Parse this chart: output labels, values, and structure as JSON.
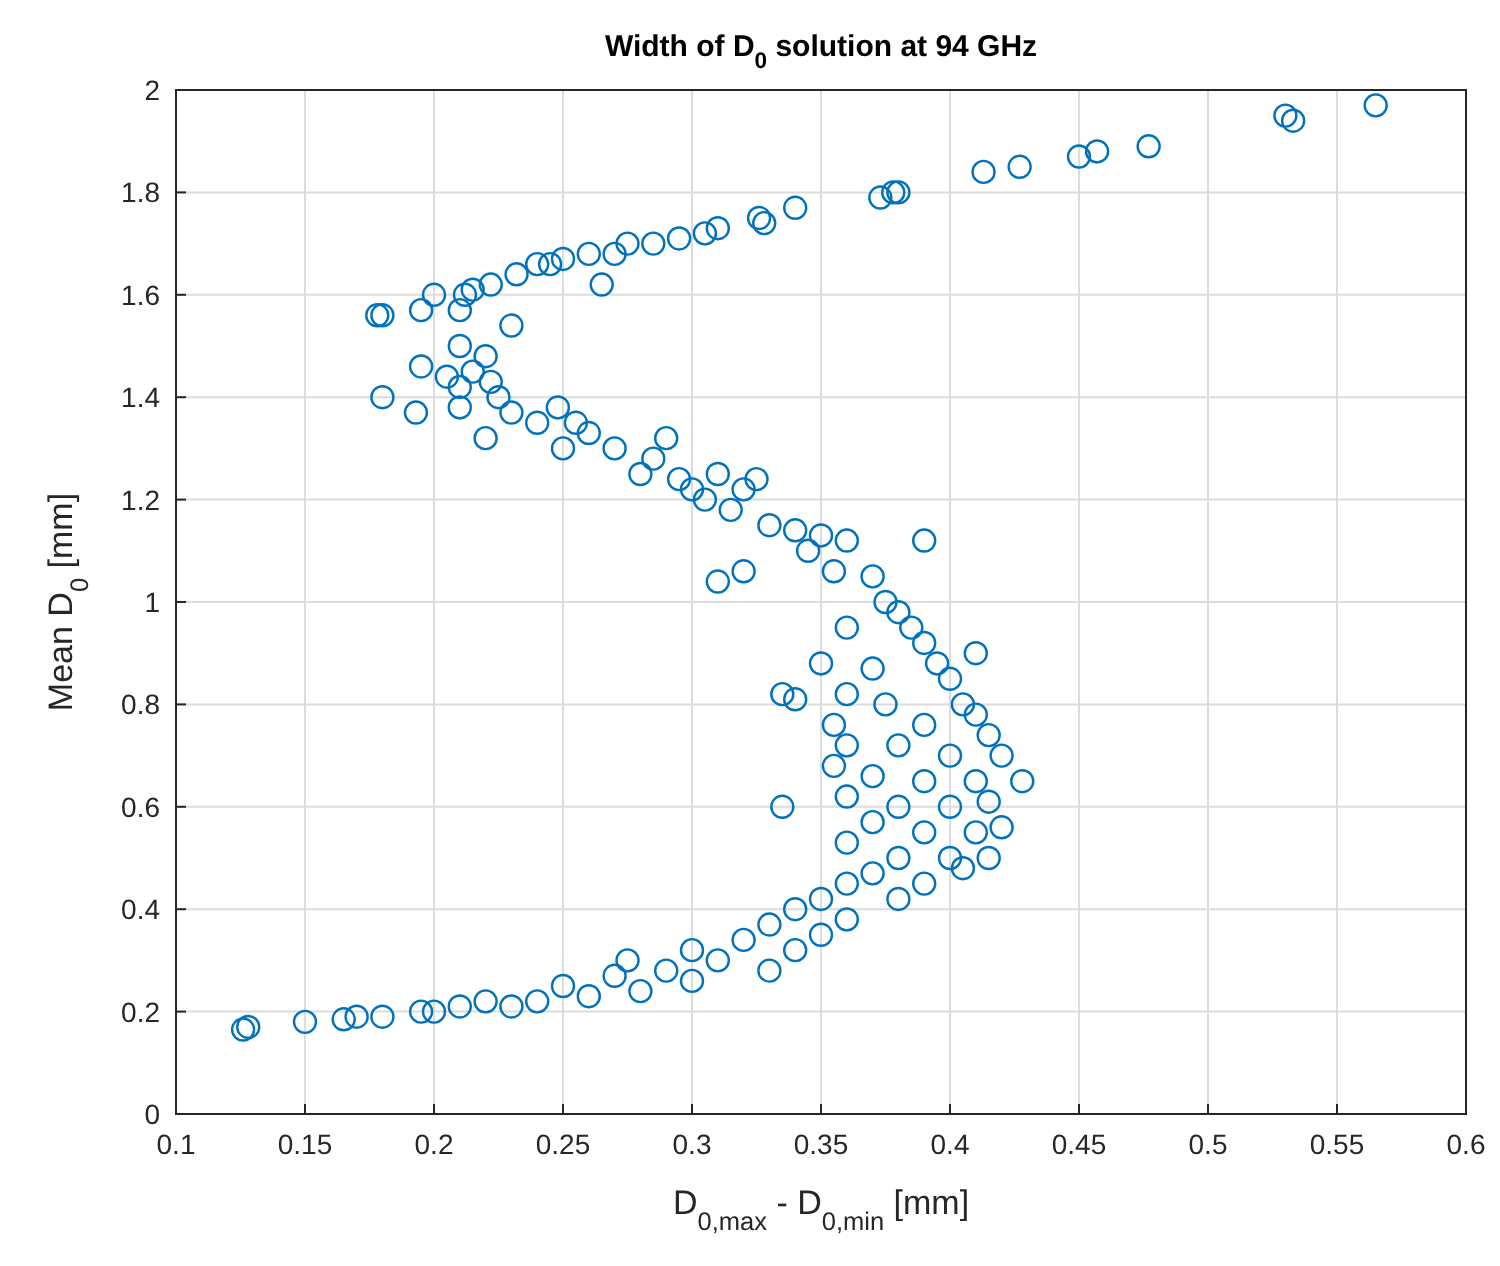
{
  "chart_data": {
    "type": "scatter",
    "title": "Width of D$_{0}$ solution at 94 GHz",
    "xlabel": "D$_{0,max}$ - D$_{0,min}$ [mm]",
    "ylabel": "Mean D$_{0}$ [mm]",
    "xlim": [
      0.1,
      0.6
    ],
    "xticks": [
      0.1,
      0.15,
      0.2,
      0.25,
      0.3,
      0.35,
      0.4,
      0.45,
      0.5,
      0.55,
      0.6
    ],
    "ylim": [
      0,
      2
    ],
    "yticks": [
      0,
      0.2,
      0.4,
      0.6,
      0.8,
      1,
      1.2,
      1.4,
      1.6,
      1.8,
      2
    ],
    "grid": true,
    "marker": "circle",
    "series": [
      {
        "color": "#0072bd",
        "x": [
          0.565,
          0.53,
          0.533,
          0.477,
          0.457,
          0.45,
          0.427,
          0.413,
          0.38,
          0.378,
          0.373,
          0.34,
          0.326,
          0.328,
          0.31,
          0.305,
          0.295,
          0.285,
          0.275,
          0.27,
          0.265,
          0.26,
          0.25,
          0.245,
          0.24,
          0.232,
          0.222,
          0.215,
          0.212,
          0.2,
          0.195,
          0.18,
          0.178,
          0.21,
          0.23,
          0.21,
          0.22,
          0.215,
          0.195,
          0.205,
          0.21,
          0.222,
          0.18,
          0.193,
          0.21,
          0.225,
          0.23,
          0.24,
          0.22,
          0.248,
          0.255,
          0.26,
          0.25,
          0.27,
          0.285,
          0.29,
          0.28,
          0.3,
          0.295,
          0.305,
          0.31,
          0.32,
          0.325,
          0.315,
          0.33,
          0.34,
          0.35,
          0.345,
          0.36,
          0.39,
          0.355,
          0.37,
          0.31,
          0.32,
          0.375,
          0.38,
          0.36,
          0.385,
          0.39,
          0.41,
          0.35,
          0.37,
          0.395,
          0.4,
          0.335,
          0.34,
          0.36,
          0.375,
          0.405,
          0.41,
          0.355,
          0.39,
          0.415,
          0.36,
          0.38,
          0.4,
          0.42,
          0.355,
          0.37,
          0.39,
          0.41,
          0.428,
          0.36,
          0.335,
          0.38,
          0.4,
          0.415,
          0.42,
          0.37,
          0.39,
          0.41,
          0.36,
          0.38,
          0.4,
          0.415,
          0.37,
          0.39,
          0.405,
          0.36,
          0.35,
          0.38,
          0.34,
          0.36,
          0.33,
          0.35,
          0.32,
          0.3,
          0.34,
          0.31,
          0.275,
          0.29,
          0.33,
          0.27,
          0.3,
          0.25,
          0.28,
          0.26,
          0.24,
          0.22,
          0.23,
          0.21,
          0.2,
          0.195,
          0.18,
          0.17,
          0.165,
          0.15,
          0.128,
          0.126
        ],
        "values": [
          1.97,
          1.95,
          1.94,
          1.89,
          1.88,
          1.87,
          1.85,
          1.84,
          1.8,
          1.8,
          1.79,
          1.77,
          1.75,
          1.74,
          1.73,
          1.72,
          1.71,
          1.7,
          1.7,
          1.68,
          1.62,
          1.68,
          1.67,
          1.66,
          1.66,
          1.64,
          1.62,
          1.61,
          1.6,
          1.6,
          1.57,
          1.56,
          1.56,
          1.57,
          1.54,
          1.5,
          1.48,
          1.45,
          1.46,
          1.44,
          1.42,
          1.43,
          1.4,
          1.37,
          1.38,
          1.4,
          1.37,
          1.35,
          1.32,
          1.38,
          1.35,
          1.33,
          1.3,
          1.3,
          1.28,
          1.32,
          1.25,
          1.22,
          1.24,
          1.2,
          1.25,
          1.22,
          1.24,
          1.18,
          1.15,
          1.14,
          1.13,
          1.1,
          1.12,
          1.12,
          1.06,
          1.05,
          1.04,
          1.06,
          1,
          0.98,
          0.95,
          0.95,
          0.92,
          0.9,
          0.88,
          0.87,
          0.88,
          0.85,
          0.82,
          0.81,
          0.82,
          0.8,
          0.8,
          0.78,
          0.76,
          0.76,
          0.74,
          0.72,
          0.72,
          0.7,
          0.7,
          0.68,
          0.66,
          0.65,
          0.65,
          0.65,
          0.62,
          0.6,
          0.6,
          0.6,
          0.61,
          0.56,
          0.57,
          0.55,
          0.55,
          0.53,
          0.5,
          0.5,
          0.5,
          0.47,
          0.45,
          0.48,
          0.45,
          0.42,
          0.42,
          0.4,
          0.38,
          0.37,
          0.35,
          0.34,
          0.32,
          0.32,
          0.3,
          0.3,
          0.28,
          0.28,
          0.27,
          0.26,
          0.25,
          0.24,
          0.23,
          0.22,
          0.22,
          0.21,
          0.21,
          0.2,
          0.2,
          0.19,
          0.19,
          0.185,
          0.18,
          0.17,
          0.165
        ]
      }
    ]
  }
}
